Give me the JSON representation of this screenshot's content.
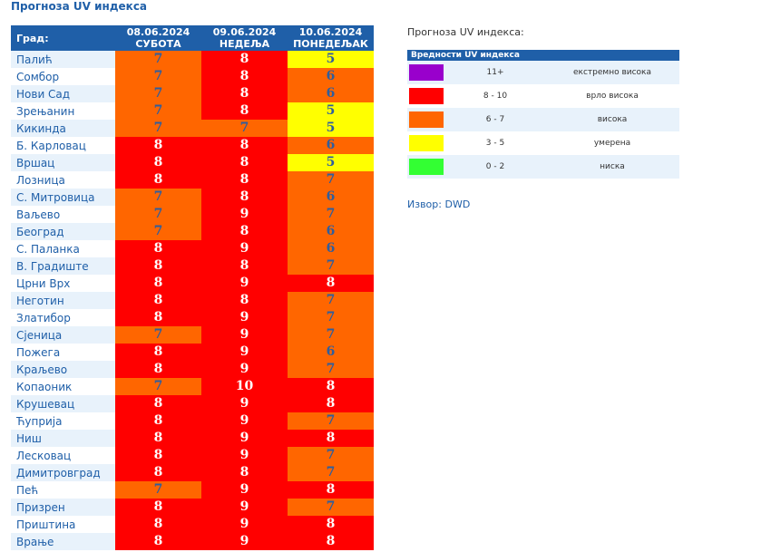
{
  "page_title": "Прогноза UV индекса",
  "colors": {
    "header_bg": "#1f5fa8",
    "purple": "#9900cc",
    "red": "#ff0000",
    "orange": "#ff6600",
    "yellow": "#ffff00",
    "green": "#33ff33"
  },
  "table": {
    "city_header": "Град:",
    "days": [
      {
        "date": "08.06.2024",
        "weekday": "СУБОТА"
      },
      {
        "date": "09.06.2024",
        "weekday": "НЕДЕЉА"
      },
      {
        "date": "10.06.2024",
        "weekday": "ПОНЕДЕЉАК"
      }
    ],
    "rows": [
      {
        "city": "Палић",
        "values": [
          7,
          8,
          5
        ]
      },
      {
        "city": "Сомбор",
        "values": [
          7,
          8,
          6
        ]
      },
      {
        "city": "Нови Сад",
        "values": [
          7,
          8,
          6
        ]
      },
      {
        "city": "Зрењанин",
        "values": [
          7,
          8,
          5
        ]
      },
      {
        "city": "Кикинда",
        "values": [
          7,
          7,
          5
        ]
      },
      {
        "city": "Б. Карловац",
        "values": [
          8,
          8,
          6
        ]
      },
      {
        "city": "Вршац",
        "values": [
          8,
          8,
          5
        ]
      },
      {
        "city": "Лозница",
        "values": [
          8,
          8,
          7
        ]
      },
      {
        "city": "С. Митровица",
        "values": [
          7,
          8,
          6
        ]
      },
      {
        "city": "Ваљево",
        "values": [
          7,
          9,
          7
        ]
      },
      {
        "city": "Београд",
        "values": [
          7,
          8,
          6
        ]
      },
      {
        "city": "С. Паланка",
        "values": [
          8,
          9,
          6
        ]
      },
      {
        "city": "В. Градиште",
        "values": [
          8,
          8,
          7
        ]
      },
      {
        "city": "Црни Врх",
        "values": [
          8,
          9,
          8
        ]
      },
      {
        "city": "Неготин",
        "values": [
          8,
          8,
          7
        ]
      },
      {
        "city": "Златибор",
        "values": [
          8,
          9,
          7
        ]
      },
      {
        "city": "Сјеница",
        "values": [
          7,
          9,
          7
        ]
      },
      {
        "city": "Пожега",
        "values": [
          8,
          9,
          6
        ]
      },
      {
        "city": "Краљево",
        "values": [
          8,
          9,
          7
        ]
      },
      {
        "city": "Копаоник",
        "values": [
          7,
          10,
          8
        ]
      },
      {
        "city": "Крушевац",
        "values": [
          8,
          9,
          8
        ]
      },
      {
        "city": "Ћуприја",
        "values": [
          8,
          9,
          7
        ]
      },
      {
        "city": "Ниш",
        "values": [
          8,
          9,
          8
        ]
      },
      {
        "city": "Лесковац",
        "values": [
          8,
          9,
          7
        ]
      },
      {
        "city": "Димитровград",
        "values": [
          8,
          8,
          7
        ]
      },
      {
        "city": "Пећ",
        "values": [
          7,
          9,
          8
        ]
      },
      {
        "city": "Призрен",
        "values": [
          8,
          9,
          7
        ]
      },
      {
        "city": "Приштина",
        "values": [
          8,
          9,
          8
        ]
      },
      {
        "city": "Врање",
        "values": [
          8,
          9,
          8
        ]
      }
    ]
  },
  "legend": {
    "title": "Прогноза UV индекса:",
    "header": "Вредности UV индекса",
    "items": [
      {
        "range": "11+",
        "label": "екстремно висока",
        "color": "#9900cc"
      },
      {
        "range": "8 - 10",
        "label": "врло висока",
        "color": "#ff0000"
      },
      {
        "range": "6 - 7",
        "label": "висока",
        "color": "#ff6600"
      },
      {
        "range": "3 - 5",
        "label": "умерена",
        "color": "#ffff00"
      },
      {
        "range": "0 - 2",
        "label": "ниска",
        "color": "#33ff33"
      }
    ]
  },
  "source": "Извор: DWD"
}
